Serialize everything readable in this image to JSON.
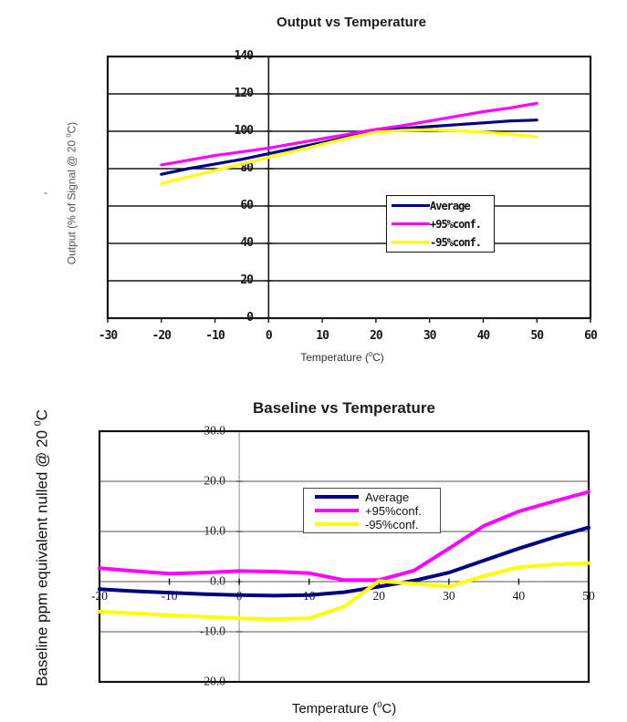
{
  "page_background": "#ffffff",
  "colors": {
    "average": "#000080",
    "plus95": "#ff00ff",
    "minus95": "#ffff00"
  },
  "chart_data": [
    {
      "type": "line",
      "title": "Output vs Temperature",
      "xlabel": {
        "pre": "Temperature (",
        "sup": "0",
        "suf": "C)"
      },
      "ylabel": {
        "pre": "Output (% of Signal @ 20 ",
        "sup": "0",
        "suf": "C)"
      },
      "stray_dash": "-",
      "xlim": [
        -30,
        60
      ],
      "ylim": [
        0,
        140
      ],
      "xticks": [
        -30,
        -20,
        -10,
        0,
        10,
        20,
        30,
        40,
        50,
        60
      ],
      "xtick_labels": [
        "-30",
        "-20",
        "-10",
        "0",
        "10",
        "20",
        "30",
        "40",
        "50",
        "60"
      ],
      "yticks": [
        140,
        120,
        100,
        80,
        60,
        40,
        20,
        0
      ],
      "ytick_labels": [
        "140",
        "120",
        "100",
        "80",
        "60",
        "40",
        "20",
        "0"
      ],
      "grid": "horizontal-only",
      "legend_position": "inside-right",
      "x": [
        -20,
        -15,
        -10,
        -5,
        0,
        5,
        10,
        15,
        20,
        25,
        30,
        35,
        40,
        45,
        50
      ],
      "series": [
        {
          "name": "Average",
          "color": "#000080",
          "values": [
            77,
            80,
            82.5,
            85,
            88,
            91,
            94,
            97,
            100,
            101.5,
            102.5,
            103.5,
            104.5,
            105.5,
            106
          ]
        },
        {
          "name": "+95%conf.",
          "color": "#ff00ff",
          "values": [
            82,
            84.5,
            87,
            89,
            91,
            93.5,
            96,
            98.5,
            101,
            103,
            105.5,
            108,
            110.5,
            112.5,
            115
          ]
        },
        {
          "name": "-95%conf.",
          "color": "#ffff00",
          "values": [
            72,
            75.5,
            79,
            82.5,
            86,
            89.5,
            93,
            96.5,
            99.5,
            100.5,
            100.8,
            100.3,
            99.5,
            98.5,
            97
          ]
        }
      ]
    },
    {
      "type": "line",
      "title": "Baseline vs Temperature",
      "xlabel": {
        "pre": "Temperature (",
        "sup": "0",
        "suf": "C)"
      },
      "ylabel": {
        "pre": "Baseline ppm equivalent nulled @ 20 ",
        "sup": "0",
        "suf": "C"
      },
      "xlim": [
        -20,
        50
      ],
      "ylim": [
        -20,
        30
      ],
      "xticks": [
        -20,
        -10,
        0,
        10,
        20,
        30,
        40,
        50
      ],
      "xtick_labels": [
        "-20",
        "-10",
        "0",
        "10",
        "20",
        "30",
        "40",
        "50"
      ],
      "yticks": [
        30,
        20,
        10,
        0,
        -10,
        -20
      ],
      "ytick_labels": [
        "30.0",
        "20.0",
        "10.0",
        "0.0",
        "-10.0",
        "-20.0"
      ],
      "grid": "horizontal-only",
      "legend_position": "inside-top-center",
      "x": [
        -20,
        -15,
        -10,
        -5,
        0,
        5,
        10,
        15,
        20,
        25,
        30,
        35,
        40,
        45,
        50
      ],
      "series": [
        {
          "name": "Average",
          "color": "#000080",
          "values": [
            -1.5,
            -1.9,
            -2.2,
            -2.5,
            -2.7,
            -2.8,
            -2.7,
            -2.1,
            -1.0,
            0.2,
            1.8,
            4.2,
            6.6,
            8.8,
            10.8
          ]
        },
        {
          "name": "+95%conf.",
          "color": "#ff00ff",
          "values": [
            2.7,
            2.1,
            1.6,
            1.8,
            2.1,
            2.0,
            1.7,
            0.3,
            0.3,
            2.2,
            6.6,
            11.1,
            14.0,
            16.0,
            17.9
          ]
        },
        {
          "name": "-95%conf.",
          "color": "#ffff00",
          "values": [
            -6.0,
            -6.3,
            -6.7,
            -7.0,
            -7.3,
            -7.5,
            -7.3,
            -5.0,
            0.1,
            -0.4,
            -1.0,
            1.1,
            2.9,
            3.4,
            3.7
          ]
        }
      ]
    }
  ]
}
